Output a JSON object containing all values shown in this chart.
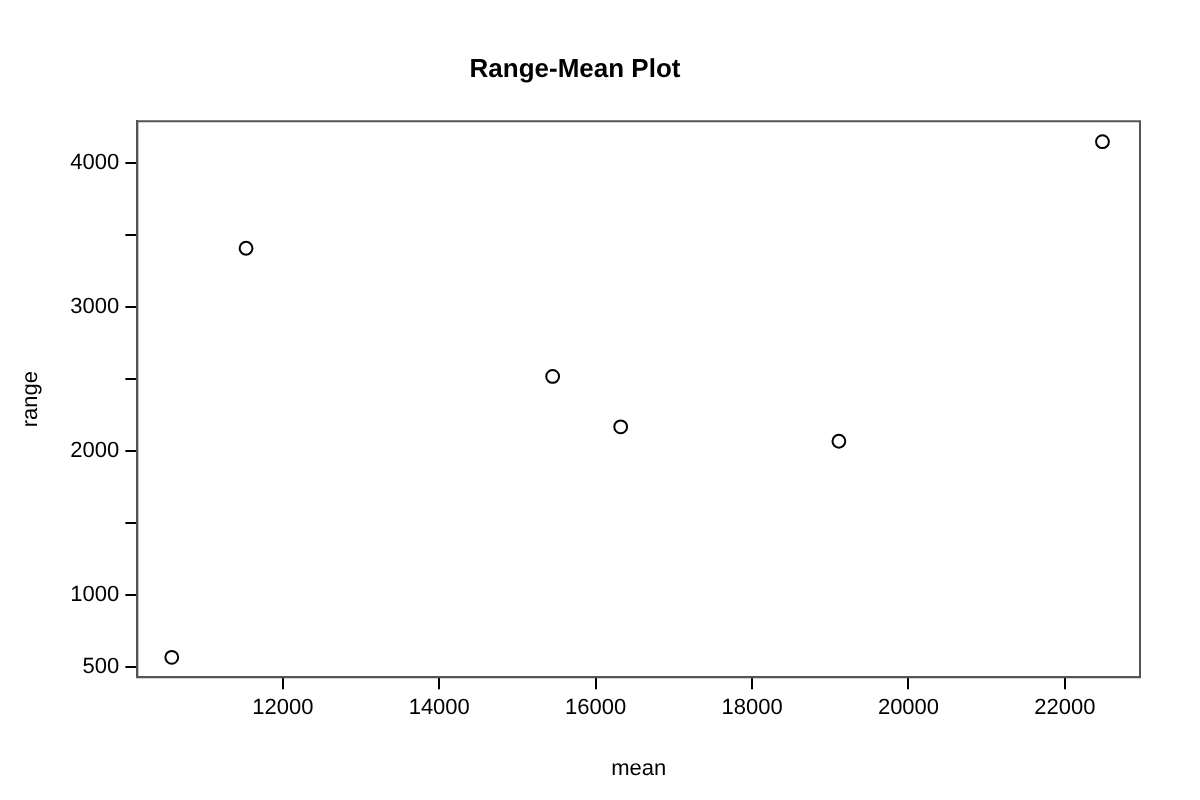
{
  "chart_data": {
    "type": "scatter",
    "title": "Range-Mean Plot",
    "xlabel": "mean",
    "ylabel": "range",
    "x": [
      10580,
      11530,
      15450,
      16320,
      19110,
      22480
    ],
    "series": [
      {
        "color": "#000000",
        "values": [
          570,
          3410,
          2520,
          2170,
          2070,
          4150
        ]
      }
    ],
    "xlim": [
      10140,
      22960
    ],
    "xticks": [
      12000,
      14000,
      16000,
      18000,
      20000,
      22000
    ],
    "ylim": [
      432,
      4292
    ],
    "yticks": [
      500,
      1000,
      {
        "value": 1500,
        "label": null
      },
      2000,
      {
        "value": 2500,
        "label": null
      },
      3000,
      {
        "value": 3500,
        "label": null
      },
      4000
    ],
    "grid": false,
    "legend": false,
    "marker": "circle"
  }
}
